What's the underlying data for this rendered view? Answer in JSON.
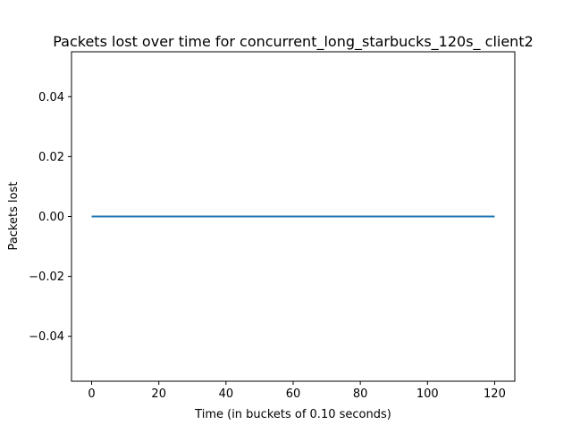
{
  "chart_data": {
    "type": "line",
    "title": "Packets lost over time for concurrent_long_starbucks_120s_ client2",
    "xlabel": "Time (in buckets of 0.10 seconds)",
    "ylabel": "Packets lost",
    "xlim": [
      -6,
      126
    ],
    "ylim": [
      -0.055,
      0.055
    ],
    "x_ticks": [
      0,
      20,
      40,
      60,
      80,
      100,
      120
    ],
    "y_ticks": [
      -0.04,
      -0.02,
      0.0,
      0.02,
      0.04
    ],
    "x_tick_labels": [
      "0",
      "20",
      "40",
      "60",
      "80",
      "100",
      "120"
    ],
    "y_tick_labels": [
      "−0.04",
      "−0.02",
      "0.00",
      "0.02",
      "0.04"
    ],
    "grid": false,
    "series": [
      {
        "color": "#1f77b4",
        "x": [
          0,
          120
        ],
        "y": [
          0,
          0
        ]
      }
    ]
  }
}
